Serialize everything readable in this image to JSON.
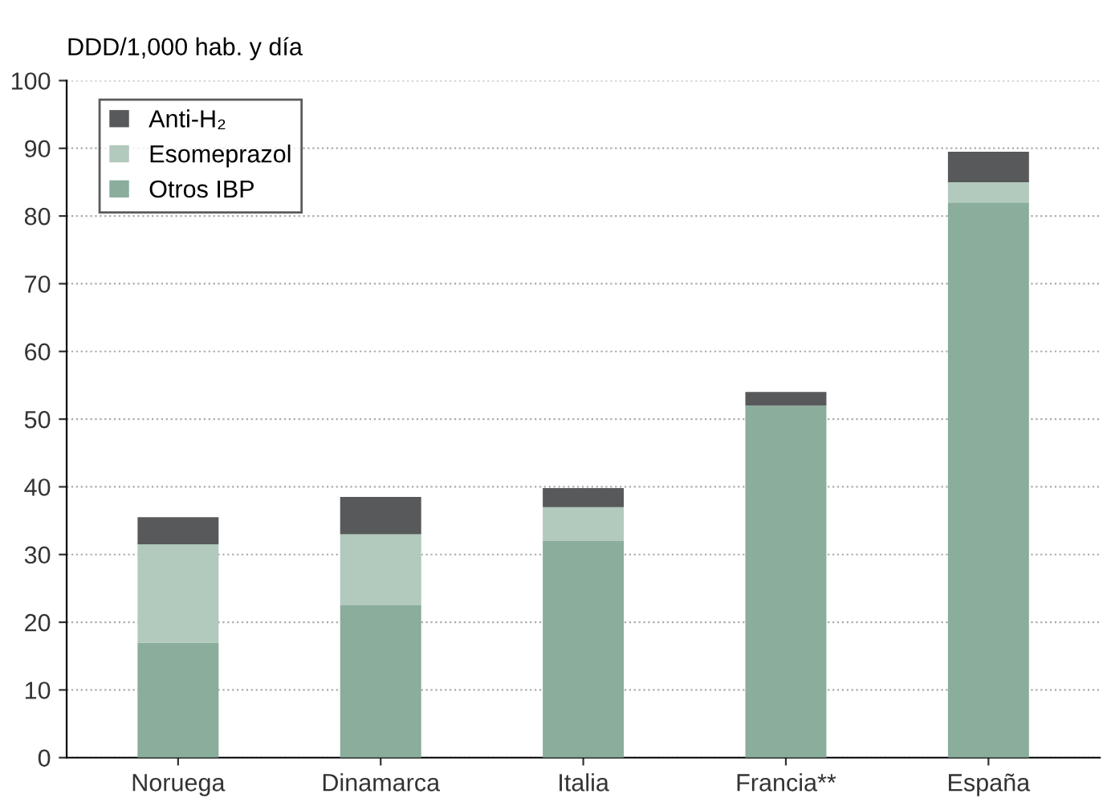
{
  "chart_data": {
    "type": "bar",
    "ylabel": "DDD/1,000 hab. y día",
    "categories": [
      "Noruega",
      "Dinamarca",
      "Italia",
      "Francia**",
      "España"
    ],
    "series": [
      {
        "name": "Otros IBP",
        "color": "#8aad9c",
        "values": [
          17,
          22.5,
          32,
          52,
          82
        ]
      },
      {
        "name": "Esomeprazol",
        "color": "#b2c9bd",
        "values": [
          14.5,
          10.5,
          5,
          0,
          3
        ]
      },
      {
        "name": "Anti-H₂",
        "color": "#58595b",
        "values": [
          4,
          5.5,
          2.8,
          2,
          4.5
        ]
      }
    ],
    "stacked": true,
    "ylim": [
      0,
      100
    ],
    "yticks": [
      0,
      10,
      20,
      30,
      40,
      50,
      60,
      70,
      80,
      90,
      100
    ],
    "grid": "y",
    "legend": "top left"
  }
}
